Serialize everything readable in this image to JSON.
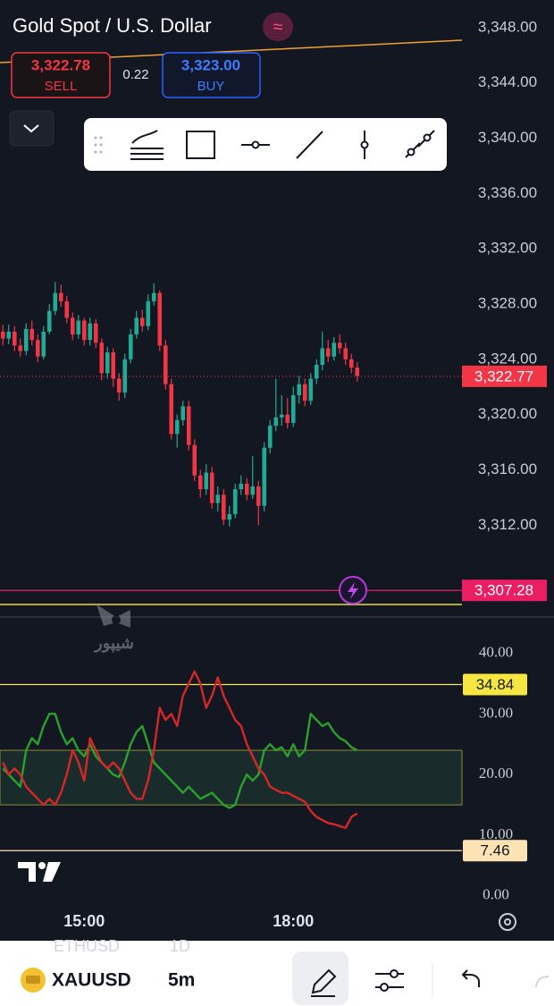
{
  "header": {
    "title": "Gold Spot / U.S. Dollar",
    "sell": {
      "price": "3,322.78",
      "label": "SELL"
    },
    "spread": "0.22",
    "buy": {
      "price": "3,323.00",
      "label": "BUY"
    }
  },
  "chart_data": [
    {
      "type": "candlestick",
      "up_color": "#22ab94",
      "down_color": "#f23645",
      "open": [
        3326.0,
        3325.5,
        3326.0,
        3325.0,
        3324.6,
        3326.2,
        3325.4,
        3324.2,
        3326.0,
        3327.5,
        3328.8,
        3328.2,
        3327.0,
        3325.8,
        3326.8,
        3325.4,
        3326.6,
        3325.2,
        3323.0,
        3324.5,
        3322.6,
        3321.6,
        3324.0,
        3325.8,
        3327.0,
        3326.4,
        3328.2,
        3328.8,
        3325.0,
        3322.2,
        3318.6,
        3319.6,
        3320.6,
        3317.8,
        3315.6,
        3314.6,
        3315.8,
        3313.6,
        3314.2,
        3312.4,
        3312.8,
        3314.6,
        3315.0,
        3314.2,
        3314.8,
        3313.4,
        3317.6,
        3319.2,
        3319.8,
        3320.0,
        3319.4,
        3321.4,
        3322.2,
        3321.0,
        3322.6,
        3323.6,
        3324.8,
        3324.2,
        3325.2,
        3324.8,
        3324.0,
        3323.4
      ],
      "high": [
        3326.5,
        3326.5,
        3326.4,
        3325.5,
        3326.6,
        3326.8,
        3325.8,
        3326.4,
        3328.0,
        3329.6,
        3329.4,
        3328.6,
        3327.4,
        3327.2,
        3327.0,
        3327.0,
        3326.9,
        3325.5,
        3324.9,
        3324.8,
        3323.0,
        3324.4,
        3326.2,
        3327.5,
        3327.6,
        3328.7,
        3329.5,
        3329.0,
        3325.4,
        3322.6,
        3320.0,
        3321.0,
        3321.0,
        3318.2,
        3316.0,
        3316.4,
        3316.2,
        3314.8,
        3314.6,
        3313.4,
        3315.0,
        3315.6,
        3315.4,
        3317.0,
        3315.2,
        3318.0,
        3319.6,
        3322.6,
        3321.4,
        3321.2,
        3322.0,
        3322.8,
        3322.6,
        3323.0,
        3324.0,
        3326.0,
        3325.4,
        3325.6,
        3325.8,
        3325.2,
        3324.4,
        3323.8
      ],
      "low": [
        3325.0,
        3325.1,
        3324.6,
        3324.2,
        3324.3,
        3325.0,
        3323.8,
        3324.0,
        3325.8,
        3327.2,
        3327.8,
        3326.6,
        3325.4,
        3325.5,
        3325.0,
        3325.0,
        3324.8,
        3322.5,
        3322.6,
        3322.0,
        3321.0,
        3321.2,
        3323.7,
        3325.5,
        3326.0,
        3326.1,
        3327.9,
        3324.6,
        3321.8,
        3318.2,
        3317.6,
        3319.2,
        3317.4,
        3315.2,
        3314.0,
        3314.2,
        3313.2,
        3313.0,
        3312.0,
        3311.9,
        3312.5,
        3314.2,
        3313.8,
        3313.9,
        3312.0,
        3313.0,
        3317.2,
        3318.8,
        3319.2,
        3319.0,
        3319.1,
        3320.8,
        3320.6,
        3320.7,
        3322.2,
        3323.2,
        3323.8,
        3323.9,
        3324.4,
        3323.6,
        3323.0,
        3322.4
      ],
      "close": [
        3325.5,
        3326.0,
        3325.0,
        3324.6,
        3326.2,
        3325.4,
        3324.2,
        3326.0,
        3327.5,
        3328.8,
        3328.2,
        3327.0,
        3325.8,
        3326.8,
        3325.4,
        3326.6,
        3325.2,
        3323.0,
        3324.5,
        3322.6,
        3321.6,
        3324.0,
        3325.8,
        3327.0,
        3326.4,
        3328.2,
        3328.8,
        3325.0,
        3322.2,
        3318.6,
        3319.6,
        3320.6,
        3317.8,
        3315.6,
        3314.6,
        3315.8,
        3313.6,
        3314.2,
        3312.4,
        3312.8,
        3314.6,
        3315.0,
        3314.2,
        3314.8,
        3313.4,
        3317.6,
        3319.2,
        3319.8,
        3320.0,
        3319.4,
        3321.4,
        3322.2,
        3321.0,
        3322.6,
        3323.6,
        3324.8,
        3324.2,
        3325.2,
        3324.8,
        3324.0,
        3323.4,
        3322.8
      ],
      "ylim": [
        3306,
        3350
      ],
      "yticks": [
        {
          "value": 3348,
          "label": "3,348.00"
        },
        {
          "value": 3344,
          "label": "3,344.00"
        },
        {
          "value": 3340,
          "label": "3,340.00"
        },
        {
          "value": 3336,
          "label": "3,336.00"
        },
        {
          "value": 3332,
          "label": "3,332.00"
        },
        {
          "value": 3328,
          "label": "3,328.00"
        },
        {
          "value": 3324,
          "label": "3,324.00"
        },
        {
          "value": 3320,
          "label": "3,320.00"
        },
        {
          "value": 3316,
          "label": "3,316.00"
        },
        {
          "value": 3312,
          "label": "3,312.00"
        }
      ],
      "price_lines": [
        {
          "value": 3322.77,
          "label": "3,322.77",
          "color": "#f23645"
        },
        {
          "value": 3307.28,
          "label": "3,307.28",
          "color": "#e91e63"
        }
      ]
    },
    {
      "type": "line",
      "categories": [
        null,
        null,
        null,
        null,
        null,
        null,
        null,
        null,
        null,
        null,
        null,
        null,
        null,
        null,
        "15:00",
        null,
        null,
        null,
        null,
        null,
        null,
        null,
        null,
        null,
        null,
        null,
        null,
        null,
        null,
        null,
        null,
        null,
        null,
        null,
        null,
        null,
        null,
        null,
        null,
        null,
        null,
        null,
        null,
        null,
        null,
        null,
        null,
        null,
        null,
        null,
        "18:00",
        null,
        null,
        null,
        null,
        null,
        null,
        null,
        null,
        null,
        null,
        null
      ],
      "series": [
        {
          "color": "#2ca02c",
          "values": [
            21,
            20,
            19,
            18,
            24,
            26,
            25,
            28,
            30,
            30,
            27,
            25,
            26,
            24,
            23,
            25,
            23,
            22,
            21,
            20,
            19.6,
            22,
            25,
            27,
            28,
            25,
            22,
            21,
            20,
            19,
            18,
            17,
            18,
            17,
            16,
            16.5,
            17,
            16,
            15,
            14.5,
            15,
            18,
            20,
            19,
            20,
            24,
            25,
            24,
            24.5,
            23,
            25,
            23,
            24,
            30,
            29,
            28,
            28.5,
            27,
            26,
            25.5,
            24.5,
            24
          ]
        },
        {
          "color": "#d62728",
          "values": [
            22,
            20,
            21,
            20,
            18,
            17,
            16,
            15,
            16,
            15,
            17,
            20,
            24,
            22,
            19,
            26,
            24,
            22,
            21,
            22,
            21,
            19,
            17,
            16,
            16,
            19,
            24,
            31,
            29,
            30,
            28,
            33,
            35,
            37,
            35,
            31,
            33,
            36,
            33,
            31,
            29,
            28,
            25,
            23,
            21,
            20,
            18,
            17.5,
            17,
            17,
            16.5,
            16,
            15.5,
            14,
            13,
            12.5,
            12,
            11.8,
            11.5,
            11.2,
            13,
            13.6
          ]
        }
      ],
      "ylim": [
        -1.5,
        44.5
      ],
      "yticks": [
        {
          "value": 0,
          "label": "0.00"
        },
        {
          "value": 10,
          "label": "10.00"
        },
        {
          "value": 20,
          "label": "20.00"
        },
        {
          "value": 30,
          "label": "30.00"
        },
        {
          "value": 40,
          "label": "40.00"
        }
      ],
      "band": [
        15,
        24
      ],
      "levels": [
        {
          "value": 34.84,
          "label": "34.84",
          "color": "#f5e642"
        },
        {
          "value": 7.46,
          "label": "7.46",
          "color": "#fde3b4"
        }
      ]
    }
  ],
  "watermark": "شیپور",
  "bottom_bar": {
    "ghost_symbol": "ETHUSD",
    "ghost_interval": "1D",
    "symbol": "XAUUSD",
    "interval": "5m"
  }
}
